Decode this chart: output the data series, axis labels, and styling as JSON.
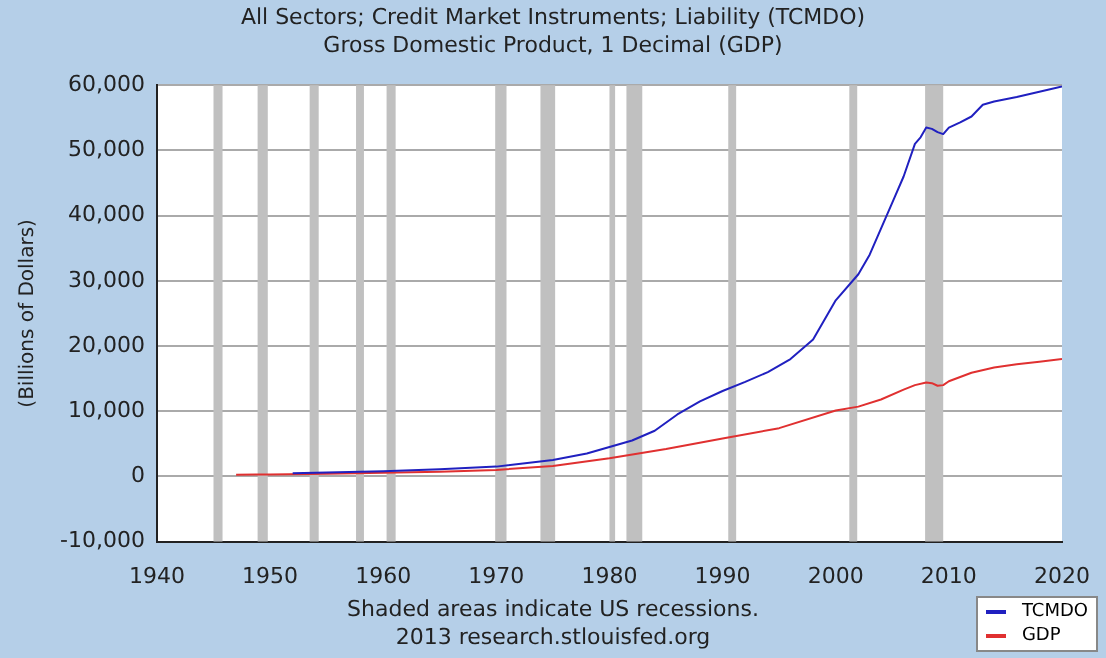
{
  "chart_data": {
    "type": "line",
    "title": "All Sectors; Credit Market Instruments; Liability (TCMDO)",
    "subtitle": "Gross Domestic Product, 1 Decimal (GDP)",
    "ylabel": "(Billions of Dollars)",
    "annotations": [
      "Shaded areas indicate US recessions.",
      "2013 research.stlouisfed.org"
    ],
    "xlim": [
      1940,
      2020
    ],
    "xticks": [
      1940,
      1950,
      1960,
      1970,
      1980,
      1990,
      2000,
      2010,
      2020
    ],
    "ylim": [
      -10000,
      60000
    ],
    "yticks": [
      {
        "value": -10000,
        "label": "-10,000"
      },
      0,
      {
        "value": 10000,
        "label": "10,000"
      },
      {
        "value": 20000,
        "label": "20,000"
      },
      {
        "value": 30000,
        "label": "30,000"
      },
      {
        "value": 40000,
        "label": "40,000"
      },
      {
        "value": 50000,
        "label": "50,000"
      },
      {
        "value": 60000,
        "label": "60,000"
      }
    ],
    "grid": "y",
    "legend": "bottom right",
    "marker": "none",
    "line_style": "solid",
    "bands": [
      {
        "axis": "x",
        "from": 1945,
        "to": 1945.8,
        "color": "#c0c0c0"
      },
      {
        "axis": "x",
        "from": 1948.9,
        "to": 1949.8,
        "color": "#c0c0c0"
      },
      {
        "axis": "x",
        "from": 1953.5,
        "to": 1954.3,
        "color": "#c0c0c0"
      },
      {
        "axis": "x",
        "from": 1957.6,
        "to": 1958.3,
        "color": "#c0c0c0"
      },
      {
        "axis": "x",
        "from": 1960.3,
        "to": 1961.1,
        "color": "#c0c0c0"
      },
      {
        "axis": "x",
        "from": 1969.9,
        "to": 1970.9,
        "color": "#c0c0c0"
      },
      {
        "axis": "x",
        "from": 1973.9,
        "to": 1975.2,
        "color": "#c0c0c0"
      },
      {
        "axis": "x",
        "from": 1980,
        "to": 1980.5,
        "color": "#c0c0c0"
      },
      {
        "axis": "x",
        "from": 1981.5,
        "to": 1982.9,
        "color": "#c0c0c0"
      },
      {
        "axis": "x",
        "from": 1990.5,
        "to": 1991.2,
        "color": "#c0c0c0"
      },
      {
        "axis": "x",
        "from": 2001.2,
        "to": 2001.9,
        "color": "#c0c0c0"
      },
      {
        "axis": "x",
        "from": 2007.9,
        "to": 2009.5,
        "color": "#c0c0c0"
      }
    ],
    "series": [
      {
        "name": "TCMDO",
        "color": "#2020c0",
        "x": [
          1952,
          1955,
          1960,
          1965,
          1970,
          1975,
          1978,
          1980,
          1982,
          1984,
          1986,
          1988,
          1990,
          1992,
          1994,
          1996,
          1998,
          2000,
          2002,
          2003,
          2004,
          2005,
          2006,
          2007,
          2007.5,
          2008,
          2008.5,
          2009,
          2009.5,
          2010,
          2011,
          2012,
          2013,
          2014,
          2016,
          2018,
          2020
        ],
        "values": [
          500,
          600,
          800,
          1100,
          1500,
          2500,
          3500,
          4500,
          5500,
          7000,
          9500,
          11500,
          13100,
          14500,
          16000,
          18000,
          21000,
          27000,
          31000,
          34000,
          38000,
          42000,
          46000,
          51000,
          52000,
          53500,
          53300,
          52800,
          52500,
          53500,
          54300,
          55200,
          57000,
          57500,
          58200,
          59000,
          59800
        ]
      },
      {
        "name": "GDP",
        "color": "#e03030",
        "x": [
          1947,
          1950,
          1955,
          1960,
          1965,
          1970,
          1975,
          1980,
          1985,
          1990,
          1995,
          2000,
          2002,
          2004,
          2006,
          2007,
          2008,
          2008.5,
          2009,
          2009.5,
          2010,
          2012,
          2014,
          2016,
          2018,
          2020
        ],
        "values": [
          250,
          300,
          400,
          550,
          700,
          1000,
          1600,
          2800,
          4200,
          5800,
          7400,
          10100,
          10700,
          11800,
          13300,
          14000,
          14400,
          14300,
          13900,
          14000,
          14600,
          15900,
          16700,
          17200,
          17600,
          18000
        ]
      }
    ]
  }
}
